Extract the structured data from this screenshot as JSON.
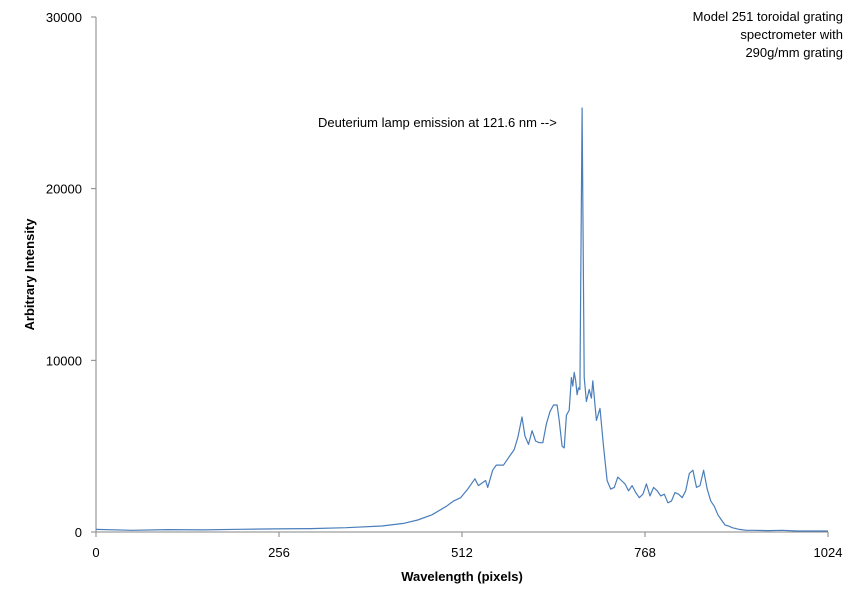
{
  "chart_data": {
    "type": "line",
    "title": "",
    "xlabel": "Wavelength (pixels)",
    "ylabel": "Arbitrary Intensity",
    "xlim": [
      0,
      1024
    ],
    "ylim": [
      0,
      30000
    ],
    "x_ticks": [
      0,
      256,
      512,
      768,
      1024
    ],
    "y_ticks": [
      0,
      10000,
      20000,
      30000
    ],
    "grid": false,
    "legend": "none",
    "line_color": "#4a7ebb",
    "annotation": "Deuterium lamp emission at 121.6  nm -->",
    "corner_note": [
      "Model 251 toroidal grating",
      "spectrometer with",
      "290g/mm grating"
    ],
    "series": [
      {
        "x": [
          0,
          50,
          100,
          150,
          200,
          250,
          300,
          350,
          400,
          430,
          450,
          470,
          490,
          500,
          510,
          520,
          530,
          535,
          545,
          548,
          555,
          560,
          570,
          575,
          585,
          590,
          596,
          600,
          605,
          610,
          615,
          620,
          625,
          630,
          635,
          640,
          645,
          648,
          652,
          655,
          658,
          662,
          665,
          667,
          669,
          671,
          673,
          675,
          677,
          680,
          683,
          686,
          690,
          693,
          695,
          700,
          705,
          710,
          715,
          720,
          725,
          730,
          735,
          740,
          745,
          750,
          755,
          760,
          765,
          770,
          775,
          780,
          785,
          790,
          795,
          800,
          805,
          810,
          815,
          820,
          825,
          830,
          835,
          840,
          845,
          850,
          855,
          860,
          865,
          870,
          875,
          880,
          885,
          890,
          895,
          900,
          905,
          910,
          920,
          940,
          960,
          980,
          1000,
          1010,
          1020,
          1024
        ],
        "y": [
          150,
          100,
          140,
          120,
          160,
          180,
          200,
          250,
          350,
          500,
          700,
          1000,
          1500,
          1800,
          2000,
          2500,
          3100,
          2700,
          3000,
          2600,
          3600,
          3900,
          3900,
          4200,
          4800,
          5500,
          6700,
          5600,
          5100,
          5900,
          5300,
          5200,
          5200,
          6300,
          7000,
          7400,
          7400,
          6500,
          5000,
          4900,
          6800,
          7100,
          9000,
          8500,
          9300,
          8800,
          8000,
          8400,
          8300,
          24700,
          9000,
          7600,
          8300,
          7800,
          8800,
          6500,
          7200,
          5000,
          3000,
          2500,
          2600,
          3200,
          3000,
          2800,
          2400,
          2700,
          2300,
          2000,
          2200,
          2800,
          2100,
          2600,
          2400,
          2100,
          2200,
          1700,
          1800,
          2300,
          2200,
          2000,
          2400,
          3400,
          3600,
          2600,
          2700,
          3600,
          2500,
          1800,
          1500,
          1000,
          700,
          400,
          350,
          250,
          200,
          150,
          120,
          100,
          100,
          80,
          100,
          60,
          60,
          60,
          60,
          60
        ]
      }
    ]
  }
}
